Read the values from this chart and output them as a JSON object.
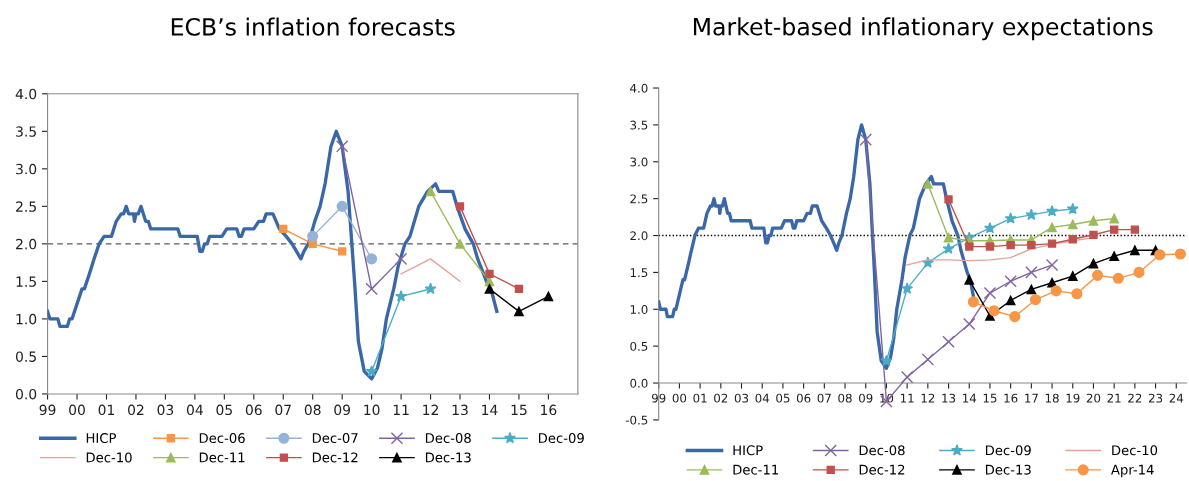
{
  "chart_data": [
    {
      "type": "line",
      "title": "ECB’s inflation forecasts",
      "xlim": [
        1999,
        2017
      ],
      "ylim": [
        0,
        4.0
      ],
      "xticks": [
        {
          "value": 1999,
          "label": "99"
        },
        {
          "value": 2000,
          "label": "00"
        },
        {
          "value": 2001,
          "label": "01"
        },
        {
          "value": 2002,
          "label": "02"
        },
        {
          "value": 2003,
          "label": "03"
        },
        {
          "value": 2004,
          "label": "04"
        },
        {
          "value": 2005,
          "label": "05"
        },
        {
          "value": 2006,
          "label": "06"
        },
        {
          "value": 2007,
          "label": "07"
        },
        {
          "value": 2008,
          "label": "08"
        },
        {
          "value": 2009,
          "label": "09"
        },
        {
          "value": 2010,
          "label": "10"
        },
        {
          "value": 2011,
          "label": "11"
        },
        {
          "value": 2012,
          "label": "12"
        },
        {
          "value": 2013,
          "label": "13"
        },
        {
          "value": 2014,
          "label": "14"
        },
        {
          "value": 2015,
          "label": "15"
        },
        {
          "value": 2016,
          "label": "16"
        }
      ],
      "yticks": [
        {
          "value": 0,
          "label": "0.0"
        },
        {
          "value": 0.5,
          "label": "0.5"
        },
        {
          "value": 1,
          "label": "1.0"
        },
        {
          "value": 1.5,
          "label": "1.5"
        },
        {
          "value": 2,
          "label": "2.0"
        },
        {
          "value": 2.5,
          "label": "2.5"
        },
        {
          "value": 3,
          "label": "3.0"
        },
        {
          "value": 3.5,
          "label": "3.5"
        },
        {
          "value": 4,
          "label": "4.0"
        }
      ],
      "grid": false,
      "legend": "bottom",
      "ref_lines": [
        {
          "axis": "y",
          "value": 2.0,
          "color": "#595959",
          "line_style": "dashed"
        }
      ],
      "series": [
        {
          "name": "HICP",
          "color": "#3a67a8",
          "marker": "none",
          "x": [
            1999.0,
            1999.08,
            1999.35,
            1999.42,
            1999.67,
            1999.75,
            1999.83,
            2000.0,
            2000.17,
            2000.25,
            2000.42,
            2000.58,
            2000.75,
            2000.92,
            2001.17,
            2001.33,
            2001.5,
            2001.58,
            2001.67,
            2001.75,
            2001.92,
            2001.95,
            2002.0,
            2002.08,
            2002.17,
            2002.33,
            2002.42,
            2002.5,
            2003.42,
            2003.5,
            2004.08,
            2004.17,
            2004.25,
            2004.33,
            2004.42,
            2004.5,
            2004.92,
            2005.08,
            2005.42,
            2005.5,
            2005.58,
            2005.67,
            2006.0,
            2006.17,
            2006.33,
            2006.42,
            2006.65,
            2006.87,
            2007.1,
            2007.3,
            2007.45,
            2007.6,
            2007.7,
            2007.85,
            2008.07,
            2008.25,
            2008.42,
            2008.62,
            2008.8,
            2009.0,
            2009.2,
            2009.42,
            2009.55,
            2009.75,
            2010.0,
            2010.2,
            2010.35,
            2010.5,
            2010.75,
            2010.9,
            2011.13,
            2011.3,
            2011.6,
            2011.9,
            2012.17,
            2012.28,
            2012.75,
            2012.9,
            2013.17,
            2013.45,
            2013.6,
            2013.9,
            2014.05,
            2014.25
          ],
          "values": [
            1.1,
            1.0,
            1.0,
            0.9,
            0.9,
            1.0,
            1.0,
            1.2,
            1.4,
            1.4,
            1.6,
            1.8,
            2.0,
            2.1,
            2.1,
            2.3,
            2.4,
            2.4,
            2.5,
            2.4,
            2.4,
            2.3,
            2.4,
            2.4,
            2.5,
            2.3,
            2.3,
            2.2,
            2.2,
            2.1,
            2.1,
            1.9,
            1.9,
            2.0,
            2.0,
            2.1,
            2.1,
            2.2,
            2.2,
            2.1,
            2.1,
            2.2,
            2.2,
            2.3,
            2.3,
            2.4,
            2.4,
            2.2,
            2.1,
            2.0,
            1.9,
            1.8,
            1.9,
            2.0,
            2.3,
            2.5,
            2.8,
            3.3,
            3.5,
            3.3,
            2.7,
            1.5,
            0.7,
            0.3,
            0.2,
            0.35,
            0.6,
            1.0,
            1.4,
            1.7,
            2.0,
            2.1,
            2.5,
            2.7,
            2.8,
            2.7,
            2.7,
            2.5,
            2.2,
            2.0,
            1.8,
            1.5,
            1.4,
            1.1
          ]
        },
        {
          "name": "Dec-06",
          "color": "#f79646",
          "marker": "square",
          "x": [
            2007,
            2008,
            2009
          ],
          "values": [
            2.2,
            2.0,
            1.9
          ]
        },
        {
          "name": "Dec-07",
          "color": "#95b3d7",
          "marker": "circle",
          "x": [
            2008,
            2009,
            2010
          ],
          "values": [
            2.1,
            2.5,
            1.8
          ]
        },
        {
          "name": "Dec-08",
          "color": "#8064a2",
          "marker": "cross",
          "x": [
            2009,
            2010,
            2011
          ],
          "values": [
            3.3,
            1.4,
            1.8
          ]
        },
        {
          "name": "Dec-09",
          "color": "#4bacc6",
          "marker": "star",
          "x": [
            2010,
            2011,
            2012
          ],
          "values": [
            0.3,
            1.3,
            1.4
          ]
        },
        {
          "name": "Dec-10",
          "color": "#e6a09e",
          "marker": "none",
          "x": [
            2011,
            2012,
            2013
          ],
          "values": [
            1.6,
            1.8,
            1.5
          ]
        },
        {
          "name": "Dec-11",
          "color": "#9bbb59",
          "marker": "triangle",
          "x": [
            2012,
            2013,
            2014
          ],
          "values": [
            2.7,
            2.0,
            1.5
          ]
        },
        {
          "name": "Dec-12",
          "color": "#c0504d",
          "marker": "square",
          "x": [
            2013,
            2014,
            2015
          ],
          "values": [
            2.5,
            1.6,
            1.4
          ]
        },
        {
          "name": "Dec-13",
          "color": "#000000",
          "marker": "triangle",
          "x": [
            2014,
            2015,
            2016
          ],
          "values": [
            1.4,
            1.1,
            1.3
          ]
        }
      ]
    },
    {
      "type": "line",
      "title": "Market-based inflationary expectations",
      "xlim": [
        1999,
        2024.5
      ],
      "ylim": [
        -0.5,
        4.0
      ],
      "xticks": [
        {
          "value": 1999,
          "label": "99"
        },
        {
          "value": 2000,
          "label": "00"
        },
        {
          "value": 2001,
          "label": "01"
        },
        {
          "value": 2002,
          "label": "02"
        },
        {
          "value": 2003,
          "label": "03"
        },
        {
          "value": 2004,
          "label": "04"
        },
        {
          "value": 2005,
          "label": "05"
        },
        {
          "value": 2006,
          "label": "06"
        },
        {
          "value": 2007,
          "label": "07"
        },
        {
          "value": 2008,
          "label": "08"
        },
        {
          "value": 2009,
          "label": "09"
        },
        {
          "value": 2010,
          "label": "10"
        },
        {
          "value": 2011,
          "label": "11"
        },
        {
          "value": 2012,
          "label": "12"
        },
        {
          "value": 2013,
          "label": "13"
        },
        {
          "value": 2014,
          "label": "14"
        },
        {
          "value": 2015,
          "label": "15"
        },
        {
          "value": 2016,
          "label": "16"
        },
        {
          "value": 2017,
          "label": "17"
        },
        {
          "value": 2018,
          "label": "18"
        },
        {
          "value": 2019,
          "label": "19"
        },
        {
          "value": 2020,
          "label": "20"
        },
        {
          "value": 2021,
          "label": "21"
        },
        {
          "value": 2022,
          "label": "22"
        },
        {
          "value": 2023,
          "label": "23"
        },
        {
          "value": 2024,
          "label": "24"
        }
      ],
      "yticks": [
        {
          "value": -0.5,
          "label": "-0.5"
        },
        {
          "value": 0,
          "label": "0.0"
        },
        {
          "value": 0.5,
          "label": "0.5"
        },
        {
          "value": 1,
          "label": "1.0"
        },
        {
          "value": 1.5,
          "label": "1.5"
        },
        {
          "value": 2,
          "label": "2.0"
        },
        {
          "value": 2.5,
          "label": "2.5"
        },
        {
          "value": 3,
          "label": "3.0"
        },
        {
          "value": 3.5,
          "label": "3.5"
        },
        {
          "value": 4,
          "label": "4.0"
        }
      ],
      "grid": false,
      "legend": "bottom",
      "ref_lines": [
        {
          "axis": "y",
          "value": 2.0,
          "color": "#000000",
          "line_style": "dotted"
        }
      ],
      "series": [
        {
          "name": "HICP",
          "color": "#3a67a8",
          "marker": "none",
          "x": [
            1999.0,
            1999.08,
            1999.35,
            1999.42,
            1999.67,
            1999.75,
            1999.83,
            2000.0,
            2000.17,
            2000.25,
            2000.42,
            2000.58,
            2000.75,
            2000.92,
            2001.17,
            2001.33,
            2001.5,
            2001.58,
            2001.67,
            2001.75,
            2001.92,
            2001.95,
            2002.0,
            2002.08,
            2002.17,
            2002.33,
            2002.42,
            2002.5,
            2003.42,
            2003.5,
            2004.08,
            2004.17,
            2004.25,
            2004.33,
            2004.42,
            2004.5,
            2004.92,
            2005.08,
            2005.42,
            2005.5,
            2005.58,
            2005.67,
            2006.0,
            2006.17,
            2006.33,
            2006.42,
            2006.65,
            2006.87,
            2007.1,
            2007.3,
            2007.45,
            2007.6,
            2007.7,
            2007.85,
            2008.07,
            2008.25,
            2008.42,
            2008.62,
            2008.8,
            2009.0,
            2009.2,
            2009.42,
            2009.55,
            2009.75,
            2010.0,
            2010.2,
            2010.35,
            2010.5,
            2010.75,
            2010.9,
            2011.13,
            2011.3,
            2011.6,
            2011.9,
            2012.17,
            2012.28,
            2012.75,
            2012.9,
            2013.17,
            2013.45,
            2013.6,
            2013.9,
            2014.05,
            2014.25
          ],
          "values": [
            1.1,
            1.0,
            1.0,
            0.9,
            0.9,
            1.0,
            1.0,
            1.2,
            1.4,
            1.4,
            1.6,
            1.8,
            2.0,
            2.1,
            2.1,
            2.3,
            2.4,
            2.4,
            2.5,
            2.4,
            2.4,
            2.3,
            2.4,
            2.4,
            2.5,
            2.3,
            2.3,
            2.2,
            2.2,
            2.1,
            2.1,
            1.9,
            1.9,
            2.0,
            2.0,
            2.1,
            2.1,
            2.2,
            2.2,
            2.1,
            2.1,
            2.2,
            2.2,
            2.3,
            2.3,
            2.4,
            2.4,
            2.2,
            2.1,
            2.0,
            1.9,
            1.8,
            1.9,
            2.0,
            2.3,
            2.5,
            2.8,
            3.3,
            3.5,
            3.3,
            2.7,
            1.5,
            0.7,
            0.3,
            0.2,
            0.35,
            0.6,
            1.0,
            1.4,
            1.7,
            2.0,
            2.1,
            2.5,
            2.7,
            2.8,
            2.7,
            2.7,
            2.5,
            2.2,
            2.0,
            1.8,
            1.5,
            1.4,
            1.1
          ]
        },
        {
          "name": "Dec-08",
          "color": "#8064a2",
          "marker": "cross",
          "x": [
            2009,
            2010,
            2011,
            2012,
            2013,
            2014,
            2015,
            2016,
            2017,
            2018
          ],
          "values": [
            3.3,
            -0.25,
            0.08,
            0.32,
            0.56,
            0.8,
            1.22,
            1.38,
            1.5,
            1.6
          ]
        },
        {
          "name": "Dec-09",
          "color": "#4bacc6",
          "marker": "star",
          "x": [
            2010,
            2011,
            2012,
            2013,
            2014,
            2015,
            2016,
            2017,
            2018,
            2019
          ],
          "values": [
            0.3,
            1.28,
            1.63,
            1.82,
            1.97,
            2.1,
            2.23,
            2.28,
            2.33,
            2.36
          ]
        },
        {
          "name": "Dec-10",
          "color": "#e6a09e",
          "marker": "none",
          "x": [
            2011,
            2012,
            2013,
            2014,
            2015,
            2016,
            2017,
            2018,
            2019,
            2020
          ],
          "values": [
            1.6,
            1.67,
            1.67,
            1.66,
            1.67,
            1.7,
            1.82,
            1.88,
            1.93,
            1.97
          ]
        },
        {
          "name": "Dec-11",
          "color": "#9bbb59",
          "marker": "triangle",
          "x": [
            2012,
            2013,
            2014,
            2015,
            2016,
            2017,
            2018,
            2019,
            2020,
            2021
          ],
          "values": [
            2.7,
            1.97,
            1.93,
            1.93,
            1.94,
            1.94,
            2.11,
            2.15,
            2.2,
            2.23
          ]
        },
        {
          "name": "Dec-12",
          "color": "#c0504d",
          "marker": "square",
          "x": [
            2013,
            2014,
            2015,
            2016,
            2017,
            2018,
            2019,
            2020,
            2021,
            2022
          ],
          "values": [
            2.49,
            1.85,
            1.85,
            1.87,
            1.87,
            1.89,
            1.95,
            2.01,
            2.08,
            2.08
          ]
        },
        {
          "name": "Dec-13",
          "color": "#000000",
          "marker": "triangle",
          "x": [
            2014,
            2015,
            2016,
            2017,
            2018,
            2019,
            2020,
            2021,
            2022,
            2023
          ],
          "values": [
            1.4,
            0.91,
            1.12,
            1.27,
            1.36,
            1.45,
            1.62,
            1.72,
            1.8,
            1.8
          ]
        },
        {
          "name": "Apr-14",
          "color": "#f79646",
          "marker": "circle",
          "x": [
            2014.2,
            2015.2,
            2016.2,
            2017.2,
            2018.2,
            2019.2,
            2020.2,
            2021.2,
            2022.2,
            2023.2,
            2024.2
          ],
          "values": [
            1.1,
            0.98,
            0.9,
            1.13,
            1.25,
            1.21,
            1.46,
            1.42,
            1.5,
            1.74,
            1.75
          ]
        }
      ]
    }
  ]
}
